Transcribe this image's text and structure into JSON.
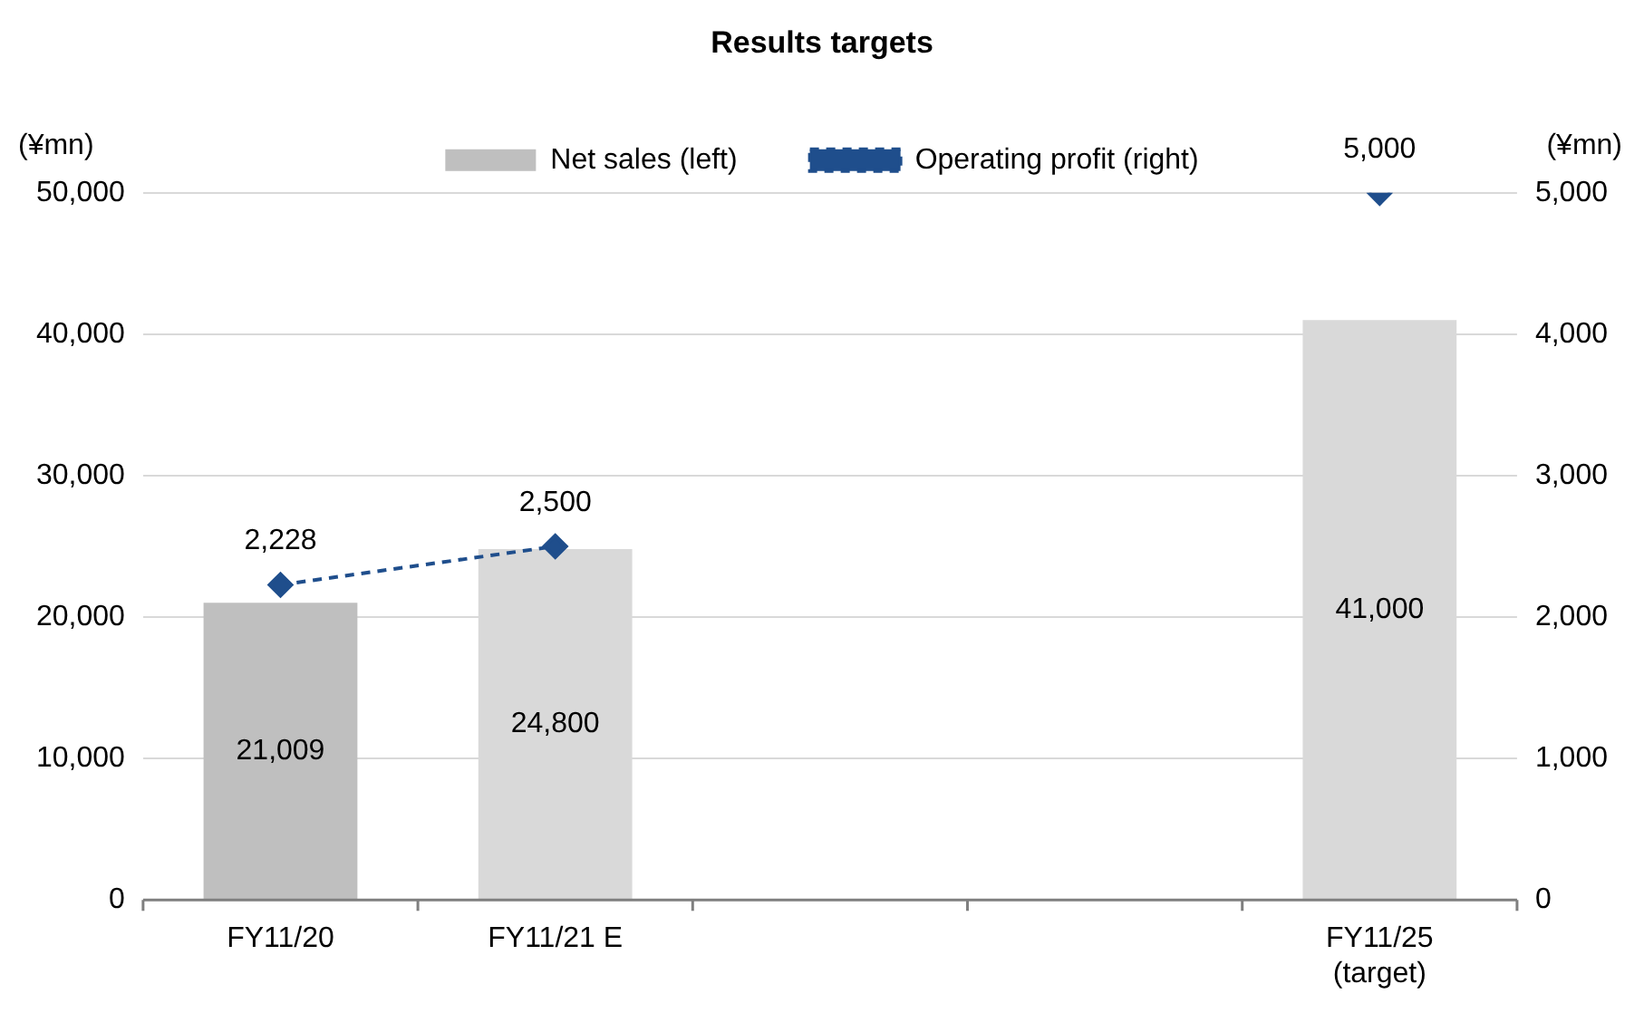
{
  "chart_data": {
    "type": "bar",
    "title": "Results targets",
    "ylabel": "(¥mn)",
    "y2label": "(¥mn)",
    "categories": [
      "FY11/20",
      "FY11/21 E",
      null,
      null,
      "FY11/25\n(target)"
    ],
    "series": [
      {
        "name": "Net sales (left)",
        "color": "#bfbfbf",
        "colors": [
          "#bfbfbf",
          "#d9d9d9",
          "#d9d9d9",
          "#d9d9d9",
          "#d9d9d9"
        ],
        "values": [
          21009,
          24800,
          null,
          null,
          41000
        ],
        "value_labels": [
          "21,009",
          "24,800",
          null,
          null,
          "41,000"
        ]
      },
      {
        "name": "Operating profit (right)",
        "type": "line",
        "axis": "y2",
        "color": "#1f4e8c",
        "marker": "diamond",
        "line_style": "dashed",
        "values": [
          2228,
          2500,
          null,
          null,
          5000
        ],
        "value_labels": [
          "2,228",
          "2,500",
          null,
          null,
          "5,000"
        ]
      }
    ],
    "ylim": [
      0,
      50000
    ],
    "yticks": [
      0,
      {
        "value": 10000,
        "label": "10,000"
      },
      {
        "value": 20000,
        "label": "20,000"
      },
      {
        "value": 30000,
        "label": "30,000"
      },
      {
        "value": 40000,
        "label": "40,000"
      },
      {
        "value": 50000,
        "label": "50,000"
      }
    ],
    "y2lim": [
      0,
      5000
    ],
    "y2ticks": [
      0,
      {
        "value": 1000,
        "label": "1,000"
      },
      {
        "value": 2000,
        "label": "2,000"
      },
      {
        "value": 3000,
        "label": "3,000"
      },
      {
        "value": 4000,
        "label": "4,000"
      },
      {
        "value": 5000,
        "label": "5,000"
      }
    ],
    "grid": "y",
    "legend": "top"
  }
}
